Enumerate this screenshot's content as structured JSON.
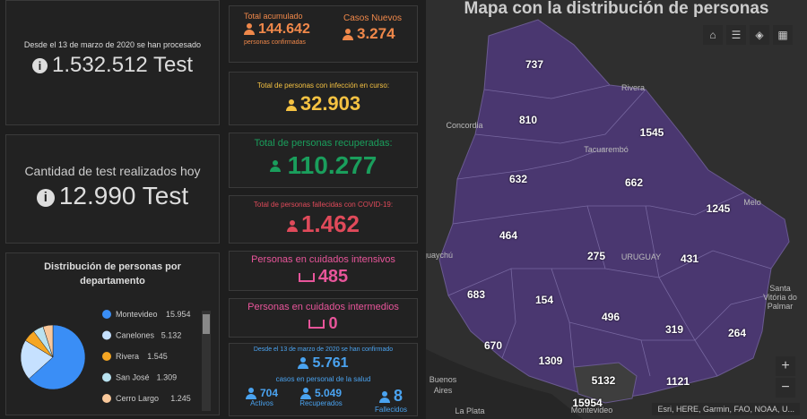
{
  "left": {
    "processed_caption": "Desde el 13 de marzo de 2020 se han procesado",
    "processed_value": "1.532.512 Test",
    "today_caption": "Cantidad de test realizados hoy",
    "today_value": "12.990 Test"
  },
  "pie": {
    "title": "Distribución de personas por departamento",
    "items": [
      {
        "name": "Montevideo",
        "value": 15954,
        "label": "15.954",
        "color": "#3a8ef6"
      },
      {
        "name": "Canelones",
        "value": 5132,
        "label": "5.132",
        "color": "#c6e1ff"
      },
      {
        "name": "Rivera",
        "value": 1545,
        "label": "1.545",
        "color": "#f5a623"
      },
      {
        "name": "San José",
        "value": 1309,
        "label": "1.309",
        "color": "#b9e2f0"
      },
      {
        "name": "Cerro Largo",
        "value": 1245,
        "label": "1.245",
        "color": "#f9c89b"
      }
    ]
  },
  "cards": {
    "total": {
      "caption": "Total acumulado",
      "value": "144.642",
      "sub": "personas confirmadas",
      "new_caption": "Casos Nuevos",
      "new_value": "3.274"
    },
    "active": {
      "caption": "Total de personas con infección en curso:",
      "value": "32.903"
    },
    "recovered": {
      "caption": "Total de personas recuperadas:",
      "value": "110.277"
    },
    "deceased": {
      "caption": "Total de personas fallecidas con COVID-19:",
      "value": "1.462"
    },
    "intensive": {
      "caption": "Personas en cuidados intensivos",
      "value": "485"
    },
    "intermediate": {
      "caption": "Personas en cuidados intermedios",
      "value": "0"
    },
    "health": {
      "caption": "Desde el 13 de marzo de 2020 se han confirmado",
      "value": "5.761",
      "sub": "casos en personal de la salud",
      "stats": [
        {
          "value": "704",
          "label": "Activos"
        },
        {
          "value": "5.049",
          "label": "Recuperados"
        },
        {
          "value": "8",
          "label": "Fallecidos"
        }
      ]
    }
  },
  "map": {
    "title": "Mapa con la distribución de personas",
    "counts": [
      "737",
      "810",
      "1545",
      "632",
      "662",
      "1245",
      "464",
      "275",
      "431",
      "683",
      "154",
      "496",
      "319",
      "264",
      "670",
      "1309",
      "5132",
      "1121",
      "15954"
    ],
    "places": [
      "Concordia",
      "Tacuarembó",
      "Rivera",
      "Melo",
      "URUGUAY",
      "guaychú",
      "Buenos",
      "Aires",
      "La Plata",
      "Montevideo",
      "Santa",
      "Vitória do",
      "Palmar"
    ],
    "attribution": "Esri, HERE, Garmin, FAO, NOAA, U..."
  }
}
